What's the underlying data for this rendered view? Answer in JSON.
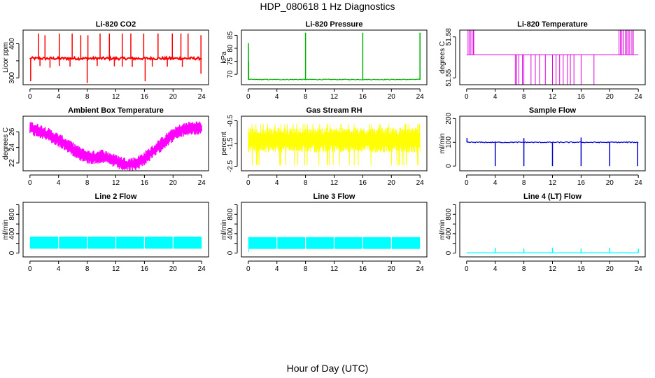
{
  "figure": {
    "title": "HDP_080618  1 Hz Diagnostics",
    "xlabel": "Hour of Day (UTC)"
  },
  "chart_data": [
    {
      "type": "line",
      "title": "Li-820 CO2",
      "ylabel": "Licor ppm",
      "color": "#ff0000",
      "xlim": [
        0,
        24
      ],
      "ylim": [
        280,
        440
      ],
      "xticks": [
        0,
        4,
        8,
        12,
        16,
        20,
        24
      ],
      "yticks": [
        300,
        350,
        400
      ],
      "ytick_labels": [
        "300",
        "",
        "400"
      ],
      "series": [
        {
          "name": "CO2",
          "baseline": 357,
          "noise": 4,
          "spikes": [
            [
              1.2,
              430
            ],
            [
              2.1,
              425
            ],
            [
              4.1,
              430
            ],
            [
              5.9,
              430
            ],
            [
              7.1,
              425
            ],
            [
              8.1,
              425
            ],
            [
              9.8,
              430
            ],
            [
              11.1,
              430
            ],
            [
              12.9,
              430
            ],
            [
              14.1,
              430
            ],
            [
              15.9,
              430
            ],
            [
              17.9,
              430
            ],
            [
              19.9,
              430
            ],
            [
              21.1,
              430
            ],
            [
              22.1,
              430
            ],
            [
              23.9,
              425
            ]
          ],
          "dips": [
            [
              0.1,
              290
            ],
            [
              1.4,
              335
            ],
            [
              2.8,
              330
            ],
            [
              4.1,
              335
            ],
            [
              5.6,
              333
            ],
            [
              8.0,
              285
            ],
            [
              9.4,
              335
            ],
            [
              11.8,
              334
            ],
            [
              12.9,
              333
            ],
            [
              14.3,
              332
            ],
            [
              16.1,
              290
            ],
            [
              17.1,
              333
            ],
            [
              19.2,
              333
            ],
            [
              21.3,
              332
            ],
            [
              23.9,
              312
            ]
          ]
        }
      ]
    },
    {
      "type": "line",
      "title": "Li-820 Pressure",
      "ylabel": "kPa",
      "color": "#00b000",
      "xlim": [
        0,
        24
      ],
      "ylim": [
        66,
        87
      ],
      "xticks": [
        0,
        4,
        8,
        12,
        16,
        20,
        24
      ],
      "yticks": [
        70,
        75,
        80,
        85
      ],
      "ytick_labels": [
        "70",
        "75",
        "80",
        "85"
      ],
      "series": [
        {
          "name": "Pressure",
          "baseline": 68,
          "noise": 0.15,
          "spikes": [
            [
              0.02,
              82
            ],
            [
              0.05,
              75
            ],
            [
              8.0,
              86
            ],
            [
              16.0,
              86
            ],
            [
              24.0,
              86
            ]
          ],
          "dips": []
        }
      ]
    },
    {
      "type": "step",
      "title": "Li-820 Temperature",
      "ylabel": "degrees C",
      "color": "#e000e0",
      "xlim": [
        0,
        24
      ],
      "ylim": [
        51.545,
        51.585
      ],
      "xticks": [
        0,
        4,
        8,
        12,
        16,
        20,
        24
      ],
      "yticks": [
        51.55,
        51.58
      ],
      "ytick_labels": [
        "51.55",
        "51.58"
      ],
      "series": [
        {
          "name": "Temperature",
          "baseline": 51.567,
          "up_to": 51.585,
          "ups": [
            0.2,
            0.4,
            0.6,
            0.9,
            1.0,
            21.3,
            21.5,
            21.7,
            21.9,
            22.2,
            22.4,
            22.6,
            22.8,
            23.1,
            23.3
          ],
          "down_to": 51.545,
          "downs": [
            6.8,
            7.0,
            7.3,
            7.8,
            8.0,
            9.0,
            9.6,
            10.2,
            11.0,
            12.0,
            12.5,
            13.0,
            13.5,
            14.1,
            14.5,
            15.0,
            16.0,
            17.8
          ]
        }
      ]
    },
    {
      "type": "line",
      "title": "Ambient Box Temperature",
      "ylabel": "degrees C",
      "color": "#ff00ff",
      "xlim": [
        0,
        24
      ],
      "ylim": [
        21,
        28
      ],
      "xticks": [
        0,
        4,
        8,
        12,
        16,
        20,
        24
      ],
      "yticks": [
        22,
        24,
        26
      ],
      "ytick_labels": [
        "22",
        "24",
        "26"
      ],
      "series": [
        {
          "name": "Box Temperature",
          "band": 0.9,
          "x": [
            0,
            1,
            2,
            3,
            4,
            5,
            6,
            7,
            8,
            9,
            10,
            11,
            12,
            13,
            14,
            15,
            16,
            17,
            18,
            19,
            20,
            21,
            22,
            23,
            24
          ],
          "values": [
            26.5,
            26.2,
            25.9,
            25.4,
            24.9,
            24.4,
            23.8,
            23.2,
            22.8,
            22.7,
            22.9,
            22.6,
            22.2,
            21.9,
            21.8,
            22.0,
            22.6,
            23.3,
            24.1,
            24.9,
            25.6,
            26.1,
            26.4,
            26.5,
            26.5
          ]
        }
      ]
    },
    {
      "type": "line",
      "title": "Gas Stream RH",
      "ylabel": "percent",
      "color": "#ffff00",
      "xlim": [
        0,
        24
      ],
      "ylim": [
        -2.7,
        -0.3
      ],
      "xticks": [
        0,
        4,
        8,
        12,
        16,
        20,
        24
      ],
      "yticks": [
        -0.5,
        -1.5,
        -2.5
      ],
      "ytick_labels": [
        "-0.5",
        "-1.5",
        "-2.5"
      ],
      "series": [
        {
          "name": "RH",
          "center": -1.35,
          "half_band": 0.55,
          "min": -2.45,
          "max": -0.65
        }
      ]
    },
    {
      "type": "line",
      "title": "Sample Flow",
      "ylabel": "ml/min",
      "color": "#0000cc",
      "xlim": [
        0,
        24
      ],
      "ylim": [
        -20,
        210
      ],
      "xticks": [
        0,
        4,
        8,
        12,
        16,
        20,
        24
      ],
      "yticks": [
        0,
        100,
        200
      ],
      "ytick_labels": [
        "0",
        "100",
        "200"
      ],
      "series": [
        {
          "name": "Sample Flow",
          "baseline": 100,
          "noise": 2,
          "spikes": [
            [
              0.05,
              118
            ],
            [
              8.0,
              118
            ],
            [
              16.0,
              120
            ]
          ],
          "dips": [
            [
              4.0,
              0
            ],
            [
              8.0,
              0
            ],
            [
              12.0,
              0
            ],
            [
              16.0,
              0
            ],
            [
              20.0,
              0
            ],
            [
              23.9,
              0
            ]
          ]
        }
      ]
    },
    {
      "type": "area",
      "title": "Line 2 Flow",
      "ylabel": "ml/min",
      "color": "#00ffff",
      "xlim": [
        0,
        24
      ],
      "ylim": [
        -80,
        1050
      ],
      "xticks": [
        0,
        4,
        8,
        12,
        16,
        20,
        24
      ],
      "yticks": [
        0,
        200,
        400,
        600,
        800,
        1000
      ],
      "ytick_labels": [
        "0",
        "",
        "400",
        "",
        "800",
        ""
      ],
      "series": [
        {
          "name": "Line 2",
          "low": 90,
          "high": 340,
          "gaps": [
            4,
            8,
            12,
            16,
            20
          ]
        }
      ]
    },
    {
      "type": "area",
      "title": "Line 3 Flow",
      "ylabel": "ml/min",
      "color": "#00ffff",
      "xlim": [
        0,
        24
      ],
      "ylim": [
        -80,
        1050
      ],
      "xticks": [
        0,
        4,
        8,
        12,
        16,
        20,
        24
      ],
      "yticks": [
        0,
        200,
        400,
        600,
        800,
        1000
      ],
      "ytick_labels": [
        "0",
        "",
        "400",
        "",
        "800",
        ""
      ],
      "series": [
        {
          "name": "Line 3",
          "low": 85,
          "high": 330,
          "gaps": [
            4,
            8,
            12,
            16,
            20
          ]
        }
      ]
    },
    {
      "type": "line",
      "title": "Line 4 (LT) Flow",
      "ylabel": "ml/min",
      "color": "#00ffff",
      "xlim": [
        0,
        24
      ],
      "ylim": [
        -80,
        1050
      ],
      "xticks": [
        0,
        4,
        8,
        12,
        16,
        20,
        24
      ],
      "yticks": [
        0,
        200,
        400,
        600,
        800,
        1000
      ],
      "ytick_labels": [
        "0",
        "",
        "400",
        "",
        "800",
        ""
      ],
      "series": [
        {
          "name": "Line 4",
          "baseline": 5,
          "noise": 0,
          "spikes": [
            [
              4.0,
              110
            ],
            [
              8.0,
              90
            ],
            [
              12.0,
              110
            ],
            [
              16.0,
              90
            ],
            [
              20.0,
              110
            ],
            [
              24.0,
              90
            ]
          ],
          "dips": []
        }
      ]
    }
  ]
}
